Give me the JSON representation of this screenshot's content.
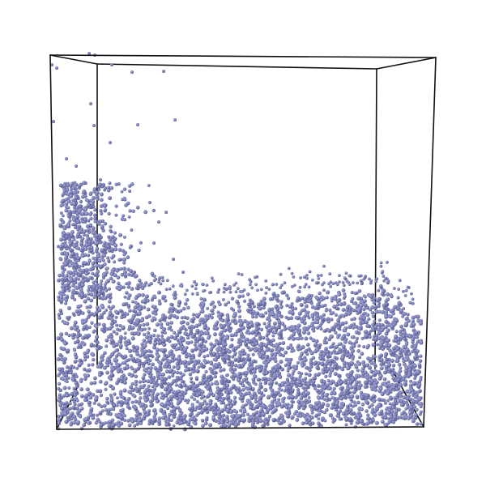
{
  "scene": {
    "kind": "particle-simulation-render",
    "background_color": "#ffffff",
    "box_edge_color": "#111111",
    "particle_color": "#7b7fb8",
    "particle_highlight_color": "#a9acd6",
    "particle_shadow_color": "#4e527f",
    "labels": []
  }
}
